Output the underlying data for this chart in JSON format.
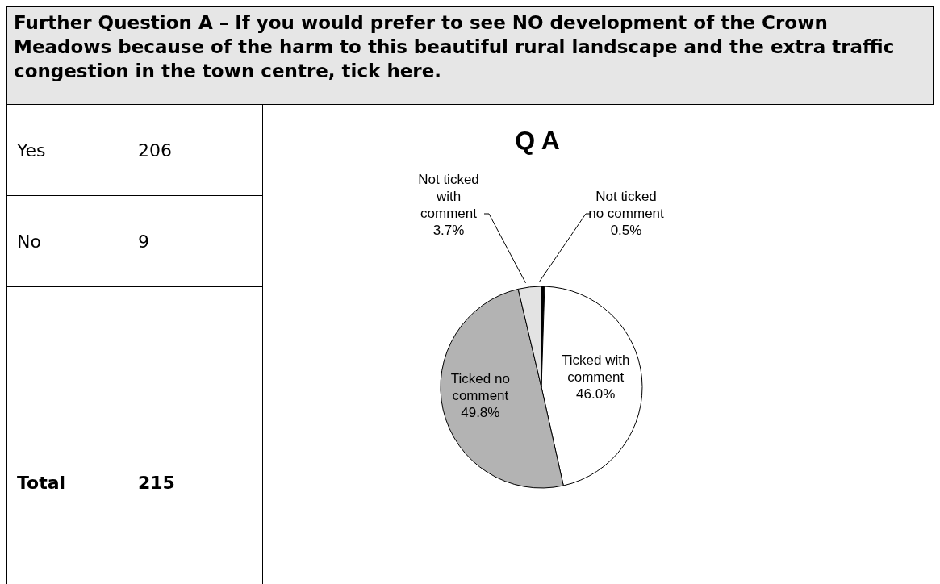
{
  "chart_data": [
    {
      "type": "other",
      "title": "Further Question A – If you would prefer to see NO development of the Crown Meadows because of the harm to this beautiful rural landscape and the extra traffic congestion in the town centre, tick here.",
      "categories": [
        "Yes",
        "No",
        null,
        "Total"
      ],
      "value_labels": [
        "206",
        "9",
        null,
        "215"
      ]
    },
    {
      "type": "pie",
      "title": "Q A",
      "categories": [
        "Not ticked no comment",
        "Ticked with comment",
        "Ticked  no comment",
        "Not ticked with comment"
      ],
      "values": [
        0.5,
        46.0,
        49.8,
        3.7
      ],
      "colors": [
        "#000000",
        "#ffffff",
        "#b3b3b3",
        "#e3e3e3"
      ],
      "value_labels": [
        "0.5%",
        "46.0%",
        "49.8%",
        "3.7%"
      ]
    }
  ]
}
